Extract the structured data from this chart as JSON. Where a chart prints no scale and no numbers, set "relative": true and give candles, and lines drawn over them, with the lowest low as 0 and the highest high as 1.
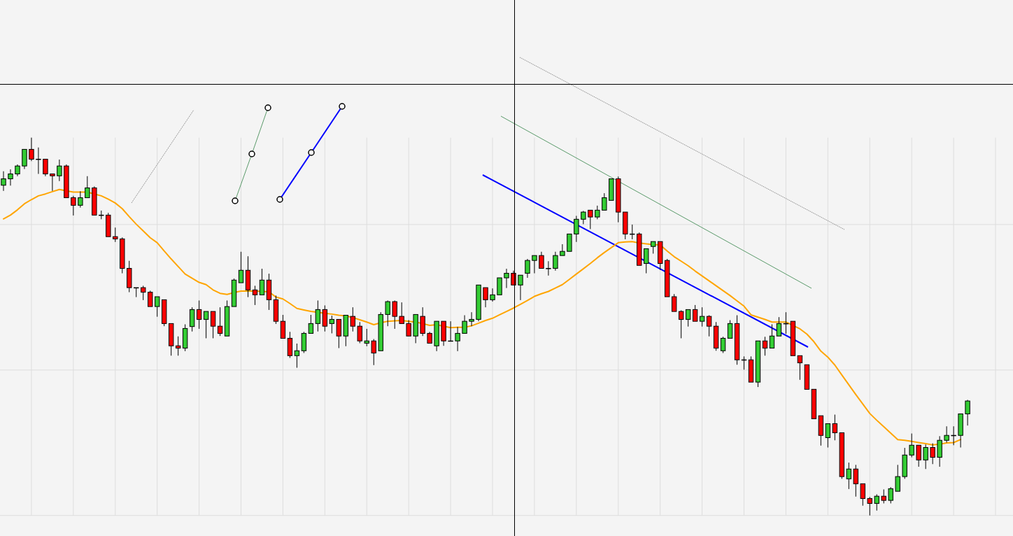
{
  "chart_data": {
    "type": "candlestick",
    "relative": true,
    "grid": true,
    "categories": [
      null,
      null,
      null,
      null,
      null,
      null,
      null,
      null,
      null,
      null,
      null,
      null,
      null,
      null,
      null,
      null,
      null,
      null,
      null,
      null,
      null,
      null,
      null,
      null,
      null,
      null,
      null,
      null,
      null,
      null,
      null,
      null,
      null,
      null,
      null,
      null,
      null,
      null,
      null,
      null,
      null,
      null,
      null,
      null,
      null,
      null,
      null,
      null,
      null,
      null,
      null,
      null,
      null,
      null,
      null,
      null,
      null,
      null,
      null,
      null,
      null,
      null,
      null,
      null,
      null,
      null,
      null,
      null,
      null,
      null,
      null,
      null,
      null,
      null,
      null,
      null,
      null,
      null,
      null,
      null,
      null,
      null,
      null,
      null,
      null,
      null,
      null,
      null,
      null,
      null,
      null,
      null,
      null,
      null,
      null,
      null,
      null,
      null,
      null,
      null,
      null,
      null,
      null,
      null,
      null,
      null,
      null,
      null,
      null,
      null,
      null,
      null,
      null,
      null,
      null,
      null,
      null,
      null,
      null,
      null,
      null,
      null,
      null,
      null,
      null,
      null,
      null,
      null,
      null,
      null,
      null,
      null,
      null,
      null,
      null,
      null,
      null,
      null,
      null,
      null,
      null,
      null,
      null,
      null,
      null
    ],
    "ohlc": [
      [
        0.874,
        0.911,
        0.859,
        0.891
      ],
      [
        0.891,
        0.916,
        0.873,
        0.904
      ],
      [
        0.904,
        0.929,
        0.898,
        0.925
      ],
      [
        0.925,
        0.969,
        0.917,
        0.969
      ],
      [
        0.969,
        1.0,
        0.938,
        0.943
      ],
      [
        0.943,
        0.974,
        0.904,
        0.943
      ],
      [
        0.943,
        0.943,
        0.898,
        0.904
      ],
      [
        0.904,
        0.904,
        0.859,
        0.899
      ],
      [
        0.899,
        0.942,
        0.885,
        0.925
      ],
      [
        0.925,
        0.929,
        0.841,
        0.841
      ],
      [
        0.841,
        0.846,
        0.794,
        0.821
      ],
      [
        0.821,
        0.858,
        0.815,
        0.841
      ],
      [
        0.841,
        0.898,
        0.841,
        0.867
      ],
      [
        0.867,
        0.871,
        0.795,
        0.795
      ],
      [
        0.795,
        0.807,
        0.784,
        0.795
      ],
      [
        0.795,
        0.801,
        0.738,
        0.738
      ],
      [
        0.738,
        0.762,
        0.724,
        0.732
      ],
      [
        0.732,
        0.736,
        0.641,
        0.654
      ],
      [
        0.654,
        0.674,
        0.591,
        0.603
      ],
      [
        0.603,
        0.603,
        0.578,
        0.603
      ],
      [
        0.603,
        0.608,
        0.57,
        0.591
      ],
      [
        0.591,
        0.595,
        0.553,
        0.553
      ],
      [
        0.553,
        0.579,
        0.526,
        0.579
      ],
      [
        0.571,
        0.571,
        0.501,
        0.508
      ],
      [
        0.508,
        0.508,
        0.423,
        0.449
      ],
      [
        0.449,
        0.474,
        0.423,
        0.443
      ],
      [
        0.443,
        0.506,
        0.435,
        0.495
      ],
      [
        0.5,
        0.551,
        0.487,
        0.545
      ],
      [
        0.545,
        0.569,
        0.494,
        0.519
      ],
      [
        0.519,
        0.54,
        0.469,
        0.54
      ],
      [
        0.54,
        0.54,
        0.469,
        0.501
      ],
      [
        0.501,
        0.551,
        0.475,
        0.482
      ],
      [
        0.475,
        0.569,
        0.475,
        0.553
      ],
      [
        0.553,
        0.627,
        0.553,
        0.623
      ],
      [
        0.616,
        0.698,
        0.616,
        0.649
      ],
      [
        0.649,
        0.686,
        0.578,
        0.597
      ],
      [
        0.597,
        0.608,
        0.557,
        0.584
      ],
      [
        0.584,
        0.653,
        0.584,
        0.623
      ],
      [
        0.623,
        0.64,
        0.544,
        0.571
      ],
      [
        0.571,
        0.582,
        0.507,
        0.514
      ],
      [
        0.514,
        0.531,
        0.469,
        0.469
      ],
      [
        0.469,
        0.486,
        0.417,
        0.423
      ],
      [
        0.423,
        0.455,
        0.391,
        0.436
      ],
      [
        0.436,
        0.486,
        0.43,
        0.482
      ],
      [
        0.482,
        0.531,
        0.482,
        0.508
      ],
      [
        0.508,
        0.569,
        0.487,
        0.545
      ],
      [
        0.545,
        0.556,
        0.487,
        0.501
      ],
      [
        0.508,
        0.529,
        0.482,
        0.519
      ],
      [
        0.519,
        0.519,
        0.443,
        0.475
      ],
      [
        0.475,
        0.53,
        0.448,
        0.53
      ],
      [
        0.527,
        0.551,
        0.487,
        0.501
      ],
      [
        0.501,
        0.512,
        0.456,
        0.462
      ],
      [
        0.456,
        0.494,
        0.448,
        0.462
      ],
      [
        0.462,
        0.467,
        0.398,
        0.43
      ],
      [
        0.436,
        0.538,
        0.436,
        0.532
      ],
      [
        0.532,
        0.569,
        0.501,
        0.566
      ],
      [
        0.566,
        0.569,
        0.494,
        0.527
      ],
      [
        0.527,
        0.564,
        0.508,
        0.508
      ],
      [
        0.508,
        0.517,
        0.475,
        0.475
      ],
      [
        0.475,
        0.532,
        0.456,
        0.532
      ],
      [
        0.527,
        0.551,
        0.475,
        0.482
      ],
      [
        0.482,
        0.486,
        0.456,
        0.456
      ],
      [
        0.449,
        0.514,
        0.435,
        0.514
      ],
      [
        0.514,
        0.514,
        0.449,
        0.462
      ],
      [
        0.462,
        0.514,
        0.462,
        0.462
      ],
      [
        0.462,
        0.499,
        0.435,
        0.482
      ],
      [
        0.482,
        0.53,
        0.482,
        0.514
      ],
      [
        0.514,
        0.538,
        0.501,
        0.519
      ],
      [
        0.519,
        0.61,
        0.514,
        0.61
      ],
      [
        0.603,
        0.603,
        0.551,
        0.571
      ],
      [
        0.571,
        0.601,
        0.566,
        0.584
      ],
      [
        0.584,
        0.629,
        0.584,
        0.629
      ],
      [
        0.629,
        0.653,
        0.602,
        0.641
      ],
      [
        0.641,
        0.648,
        0.61,
        0.61
      ],
      [
        0.61,
        0.636,
        0.57,
        0.636
      ],
      [
        0.641,
        0.679,
        0.629,
        0.675
      ],
      [
        0.675,
        0.688,
        0.641,
        0.688
      ],
      [
        0.688,
        0.698,
        0.654,
        0.654
      ],
      [
        0.654,
        0.673,
        0.635,
        0.654
      ],
      [
        0.654,
        0.698,
        0.648,
        0.688
      ],
      [
        0.688,
        0.718,
        0.688,
        0.699
      ],
      [
        0.699,
        0.745,
        0.699,
        0.745
      ],
      [
        0.745,
        0.793,
        0.724,
        0.784
      ],
      [
        0.784,
        0.806,
        0.771,
        0.803
      ],
      [
        0.808,
        0.808,
        0.758,
        0.79
      ],
      [
        0.79,
        0.82,
        0.784,
        0.808
      ],
      [
        0.808,
        0.853,
        0.808,
        0.841
      ],
      [
        0.834,
        0.891,
        0.834,
        0.891
      ],
      [
        0.891,
        0.897,
        0.776,
        0.803
      ],
      [
        0.803,
        0.803,
        0.731,
        0.745
      ],
      [
        0.745,
        0.77,
        0.731,
        0.745
      ],
      [
        0.745,
        0.749,
        0.662,
        0.662
      ],
      [
        0.667,
        0.706,
        0.641,
        0.706
      ],
      [
        0.712,
        0.725,
        0.693,
        0.725
      ],
      [
        0.725,
        0.725,
        0.65,
        0.667
      ],
      [
        0.675,
        0.679,
        0.579,
        0.579
      ],
      [
        0.579,
        0.586,
        0.54,
        0.54
      ],
      [
        0.54,
        0.543,
        0.469,
        0.519
      ],
      [
        0.519,
        0.545,
        0.5,
        0.545
      ],
      [
        0.545,
        0.557,
        0.514,
        0.514
      ],
      [
        0.514,
        0.551,
        0.5,
        0.527
      ],
      [
        0.527,
        0.53,
        0.474,
        0.501
      ],
      [
        0.501,
        0.512,
        0.436,
        0.443
      ],
      [
        0.436,
        0.473,
        0.43,
        0.469
      ],
      [
        0.469,
        0.517,
        0.469,
        0.508
      ],
      [
        0.508,
        0.53,
        0.399,
        0.412
      ],
      [
        0.412,
        0.421,
        0.386,
        0.412
      ],
      [
        0.412,
        0.421,
        0.353,
        0.353
      ],
      [
        0.353,
        0.462,
        0.34,
        0.462
      ],
      [
        0.462,
        0.473,
        0.423,
        0.443
      ],
      [
        0.443,
        0.506,
        0.443,
        0.475
      ],
      [
        0.475,
        0.525,
        0.475,
        0.508
      ],
      [
        0.508,
        0.538,
        0.481,
        0.508
      ],
      [
        0.514,
        0.514,
        0.423,
        0.423
      ],
      [
        0.423,
        0.423,
        0.359,
        0.404
      ],
      [
        0.399,
        0.399,
        0.334,
        0.334
      ],
      [
        0.334,
        0.334,
        0.256,
        0.256
      ],
      [
        0.264,
        0.264,
        0.185,
        0.212
      ],
      [
        0.206,
        0.243,
        0.18,
        0.243
      ],
      [
        0.243,
        0.267,
        0.199,
        0.219
      ],
      [
        0.219,
        0.219,
        0.097,
        0.103
      ],
      [
        0.097,
        0.14,
        0.07,
        0.123
      ],
      [
        0.123,
        0.134,
        0.05,
        0.084
      ],
      [
        0.084,
        0.084,
        0.026,
        0.045
      ],
      [
        0.045,
        0.049,
        0.0,
        0.032
      ],
      [
        0.032,
        0.056,
        0.013,
        0.051
      ],
      [
        0.051,
        0.069,
        0.032,
        0.04
      ],
      [
        0.04,
        0.075,
        0.032,
        0.071
      ],
      [
        0.064,
        0.134,
        0.064,
        0.103
      ],
      [
        0.103,
        0.179,
        0.097,
        0.16
      ],
      [
        0.16,
        0.217,
        0.154,
        0.186
      ],
      [
        0.186,
        0.186,
        0.129,
        0.147
      ],
      [
        0.147,
        0.188,
        0.123,
        0.18
      ],
      [
        0.18,
        0.191,
        0.136,
        0.154
      ],
      [
        0.154,
        0.21,
        0.129,
        0.199
      ],
      [
        0.199,
        0.236,
        0.193,
        0.212
      ],
      [
        0.212,
        0.236,
        0.186,
        0.212
      ],
      [
        0.212,
        0.269,
        0.18,
        0.269
      ],
      [
        0.269,
        0.306,
        0.238,
        0.303
      ],
      null,
      null,
      null,
      null,
      null,
      null
    ],
    "series": [
      {
        "type": "line",
        "color": "#ffa500",
        "values": [
          0.785,
          0.795,
          0.809,
          0.825,
          0.836,
          0.846,
          0.851,
          0.857,
          0.863,
          0.859,
          0.856,
          0.856,
          0.856,
          0.851,
          0.846,
          0.837,
          0.827,
          0.812,
          0.791,
          0.771,
          0.753,
          0.735,
          0.722,
          0.7,
          0.679,
          0.659,
          0.639,
          0.628,
          0.617,
          0.611,
          0.597,
          0.588,
          0.585,
          0.59,
          0.594,
          0.594,
          0.594,
          null,
          0.592,
          0.578,
          0.573,
          0.561,
          0.548,
          0.544,
          0.54,
          0.538,
          0.535,
          0.533,
          0.53,
          0.528,
          0.524,
          0.518,
          0.512,
          0.505,
          0.51,
          0.514,
          0.515,
          0.516,
          0.514,
          0.512,
          0.508,
          0.503,
          0.505,
          0.501,
          0.497,
          0.498,
          0.498,
          0.502,
          0.509,
          0.516,
          0.522,
          0.531,
          0.54,
          0.549,
          0.559,
          0.569,
          0.58,
          0.587,
          0.593,
          0.602,
          0.611,
          0.625,
          0.639,
          0.653,
          0.667,
          0.682,
          0.696,
          0.709,
          0.722,
          0.724,
          0.725,
          0.721,
          0.719,
          0.717,
          0.716,
          0.7,
          0.685,
          0.673,
          0.661,
          0.647,
          0.634,
          0.621,
          0.608,
          0.595,
          0.582,
          0.568,
          0.554,
          0.531,
          0.525,
          0.519,
          0.512,
          0.512,
          0.512,
          0.503,
          0.494,
          0.48,
          0.46,
          0.435,
          0.419,
          0.398,
          0.372,
          0.346,
          0.32,
          0.295,
          0.27,
          0.252,
          0.235,
          0.218,
          0.201,
          0.199,
          0.196,
          0.193,
          0.19,
          0.187,
          0.189,
          0.192,
          0.193,
          0.201,
          null,
          null,
          null,
          null,
          null,
          null,
          null
        ]
      }
    ]
  }
}
